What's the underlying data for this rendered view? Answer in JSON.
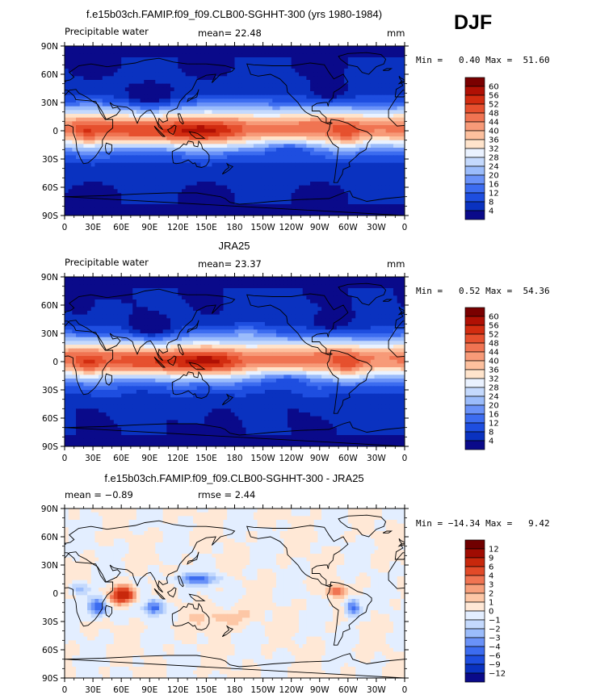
{
  "season": "DJF",
  "colors": {
    "pw_levels": [
      "#0a0a8a",
      "#0a32c0",
      "#1e4ee0",
      "#3c6cf0",
      "#6a92f8",
      "#9bbcfb",
      "#c4d9fd",
      "#eaf2ff",
      "#ffe4cc",
      "#fdc09e",
      "#f79a78",
      "#f07452",
      "#e6502e",
      "#d22c10",
      "#b01004",
      "#7a0000"
    ],
    "diff_levels": [
      "#0a0a8a",
      "#0a32c0",
      "#1e4ee0",
      "#3c6cf0",
      "#6a92f8",
      "#9bbcfb",
      "#c4d9fd",
      "#e3eeff",
      "#ffe8d6",
      "#fdc7a6",
      "#f7a07c",
      "#f07452",
      "#e24a28",
      "#c8280c",
      "#a00c02",
      "#700000"
    ],
    "coast": "#000000"
  },
  "panels": [
    {
      "id": "model",
      "title": "f.e15b03ch.FAMIP.f09_f09.CLB00-SGHHT-300 (yrs 1980-1984)",
      "left_label": "Precipitable water",
      "mid_label": "mean=  22.48",
      "units": "mm",
      "minmax": "Min =   0.40 Max =  51.60"
    },
    {
      "id": "obs",
      "title": "JRA25",
      "left_label": "Precipitable water",
      "mid_label": "mean=  23.37",
      "units": "mm",
      "minmax": "Min =   0.52 Max =  54.36"
    },
    {
      "id": "diff",
      "title": "f.e15b03ch.FAMIP.f09_f09.CLB00-SGHHT-300 - JRA25",
      "left_label": "mean = −0.89",
      "mid_label": "rmse =   2.44",
      "units": "",
      "minmax": "Min = −14.34 Max =   9.42"
    }
  ],
  "chart_data": [
    {
      "type": "heatmap",
      "title": "f.e15b03ch.FAMIP.f09_f09.CLB00-SGHHT-300 (yrs 1980-1984)",
      "variable": "Precipitable water",
      "units": "mm",
      "mean": 22.48,
      "min": 0.4,
      "max": 51.6,
      "lat_ticks": [
        "90N",
        "60N",
        "30N",
        "0",
        "30S",
        "60S",
        "90S"
      ],
      "lon_ticks": [
        "0",
        "30E",
        "60E",
        "90E",
        "120E",
        "150E",
        "180",
        "150W",
        "120W",
        "90W",
        "60W",
        "30W",
        "0"
      ],
      "colorbar_levels": [
        "60",
        "56",
        "52",
        "48",
        "44",
        "40",
        "36",
        "32",
        "28",
        "24",
        "20",
        "16",
        "12",
        "8",
        "4"
      ],
      "xlim": [
        0,
        360
      ],
      "ylim": [
        -90,
        90
      ]
    },
    {
      "type": "heatmap",
      "title": "JRA25",
      "variable": "Precipitable water",
      "units": "mm",
      "mean": 23.37,
      "min": 0.52,
      "max": 54.36,
      "lat_ticks": [
        "90N",
        "60N",
        "30N",
        "0",
        "30S",
        "60S",
        "90S"
      ],
      "lon_ticks": [
        "0",
        "30E",
        "60E",
        "90E",
        "120E",
        "150E",
        "180",
        "150W",
        "120W",
        "90W",
        "60W",
        "30W",
        "0"
      ],
      "colorbar_levels": [
        "60",
        "56",
        "52",
        "48",
        "44",
        "40",
        "36",
        "32",
        "28",
        "24",
        "20",
        "16",
        "12",
        "8",
        "4"
      ],
      "xlim": [
        0,
        360
      ],
      "ylim": [
        -90,
        90
      ]
    },
    {
      "type": "heatmap",
      "title": "f.e15b03ch.FAMIP.f09_f09.CLB00-SGHHT-300 - JRA25",
      "mean": -0.89,
      "rmse": 2.44,
      "min": -14.34,
      "max": 9.42,
      "lat_ticks": [
        "90N",
        "60N",
        "30N",
        "0",
        "30S",
        "60S",
        "90S"
      ],
      "lon_ticks": [
        "0",
        "30E",
        "60E",
        "90E",
        "120E",
        "150E",
        "180",
        "150W",
        "120W",
        "90W",
        "60W",
        "30W",
        "0"
      ],
      "colorbar_levels": [
        "12",
        "9",
        "6",
        "4",
        "3",
        "2",
        "1",
        "0",
        "−1",
        "−2",
        "−3",
        "−4",
        "−6",
        "−9",
        "−12"
      ],
      "xlim": [
        0,
        360
      ],
      "ylim": [
        -90,
        90
      ]
    }
  ]
}
